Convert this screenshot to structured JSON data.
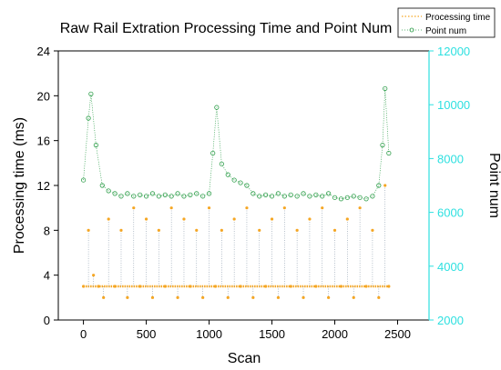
{
  "chart_data": {
    "type": "scatter",
    "title": "Raw Rail Extration Processing Time and Point Num",
    "xlabel": "Scan",
    "ylabel": "Processing time (ms)",
    "y2label": "Point num",
    "xlim": [
      -200,
      2750
    ],
    "ylim": [
      0,
      24
    ],
    "y2lim": [
      2000,
      12000
    ],
    "x_ticks": [
      0,
      500,
      1000,
      1500,
      2000,
      2500
    ],
    "y_ticks": [
      0,
      4,
      8,
      12,
      16,
      20,
      24
    ],
    "y2_ticks": [
      2000,
      4000,
      6000,
      8000,
      10000,
      12000
    ],
    "legend_position": "top-right",
    "grid": false,
    "series": [
      {
        "name": "Processing time",
        "axis": "left",
        "color": "#f5a623",
        "marker": "dotted",
        "x": [
          0,
          40,
          80,
          120,
          160,
          200,
          250,
          300,
          350,
          400,
          450,
          500,
          550,
          600,
          650,
          700,
          750,
          800,
          850,
          900,
          950,
          1000,
          1050,
          1100,
          1150,
          1200,
          1250,
          1300,
          1350,
          1400,
          1450,
          1500,
          1550,
          1600,
          1650,
          1700,
          1750,
          1800,
          1850,
          1900,
          1950,
          2000,
          2050,
          2100,
          2150,
          2200,
          2250,
          2300,
          2350,
          2400,
          2430
        ],
        "y": [
          3,
          8,
          4,
          3,
          2,
          9,
          3,
          8,
          2,
          10,
          3,
          9,
          2,
          8,
          3,
          10,
          2,
          9,
          3,
          8,
          2,
          10,
          3,
          8,
          2,
          9,
          3,
          10,
          2,
          8,
          3,
          9,
          2,
          10,
          3,
          8,
          2,
          9,
          3,
          10,
          2,
          8,
          3,
          9,
          2,
          10,
          3,
          8,
          2,
          12,
          3
        ],
        "baseline": 3
      },
      {
        "name": "Point num",
        "axis": "right",
        "color": "#2e9e4a",
        "marker": "circle",
        "x": [
          0,
          40,
          60,
          100,
          150,
          200,
          250,
          300,
          350,
          400,
          450,
          500,
          550,
          600,
          650,
          700,
          750,
          800,
          850,
          900,
          950,
          1000,
          1030,
          1060,
          1100,
          1150,
          1200,
          1250,
          1300,
          1350,
          1400,
          1450,
          1500,
          1550,
          1600,
          1650,
          1700,
          1750,
          1800,
          1850,
          1900,
          1950,
          2000,
          2050,
          2100,
          2150,
          2200,
          2250,
          2300,
          2350,
          2380,
          2400,
          2430
        ],
        "y": [
          7200,
          9500,
          10400,
          8500,
          7000,
          6800,
          6700,
          6600,
          6700,
          6600,
          6650,
          6600,
          6700,
          6600,
          6650,
          6600,
          6700,
          6600,
          6650,
          6700,
          6600,
          6700,
          8200,
          9900,
          7800,
          7400,
          7200,
          7100,
          7000,
          6700,
          6600,
          6650,
          6600,
          6700,
          6600,
          6650,
          6600,
          6700,
          6600,
          6650,
          6600,
          6700,
          6550,
          6500,
          6550,
          6600,
          6550,
          6500,
          6600,
          7000,
          8500,
          10600,
          8200
        ]
      }
    ]
  },
  "legend": {
    "items": [
      {
        "label": "Processing time",
        "color": "#f5a623"
      },
      {
        "label": "Point num",
        "color": "#2e9e4a"
      }
    ]
  },
  "colors": {
    "right_axis": "#2ee0e0",
    "left_axis": "#000000"
  }
}
